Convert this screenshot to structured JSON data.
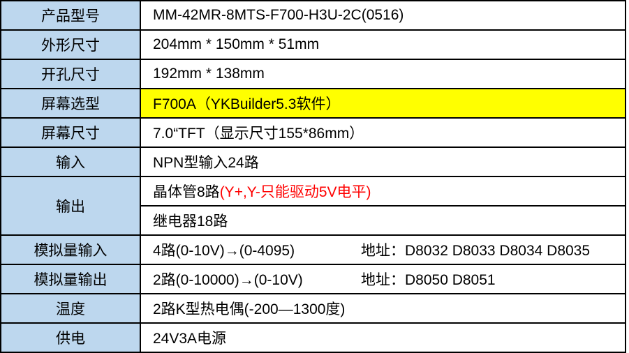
{
  "colors": {
    "label_bg": "#BDD7EE",
    "highlight_bg": "#FFFF00",
    "warning_text": "#FF0000",
    "border": "#000000"
  },
  "table": {
    "rows": [
      {
        "label": "产品型号",
        "value": "MM-42MR-8MTS-F700-H3U-2C(0516)"
      },
      {
        "label": "外形尺寸",
        "value": "204mm * 150mm * 51mm"
      },
      {
        "label": "开孔尺寸",
        "value": "192mm * 138mm"
      },
      {
        "label": "屏幕选型",
        "value": "F700A（YKBuilder5.3软件）",
        "highlight": true
      },
      {
        "label": "屏幕尺寸",
        "value": "7.0“TFT（显示尺寸155*86mm）"
      },
      {
        "label": "输入",
        "value": "NPN型输入24路"
      },
      {
        "label": "输出",
        "value1": "晶体管8路",
        "value1_red": "(Y+,Y-只能驱动5V电平)",
        "value2": "继电器18路"
      },
      {
        "label": "模拟量输入",
        "value": "4路(0-10V)→(0-4095)",
        "address": "地址：D8032 D8033 D8034 D8035"
      },
      {
        "label": "模拟量输出",
        "value": "2路(0-10000)→(0-10V)",
        "address": "地址：D8050 D8051"
      },
      {
        "label": "温度",
        "value": "2路K型热电偶(-200—1300度)"
      },
      {
        "label": "供电",
        "value": "24V3A电源"
      }
    ]
  }
}
